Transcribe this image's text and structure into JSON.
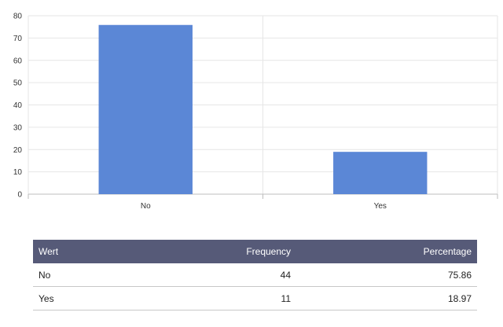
{
  "chart_data": {
    "type": "bar",
    "categories": [
      "No",
      "Yes"
    ],
    "values": [
      75.86,
      18.97
    ],
    "ylim": [
      0,
      80
    ],
    "yticks": [
      0,
      10,
      20,
      30,
      40,
      50,
      60,
      70,
      80
    ],
    "grid": true,
    "title": "",
    "xlabel": "",
    "ylabel": "",
    "bar_color": "#5b87d6"
  },
  "table": {
    "headers": [
      "Wert",
      "Frequency",
      "Percentage"
    ],
    "rows": [
      [
        "No",
        "44",
        "75.86"
      ],
      [
        "Yes",
        "11",
        "18.97"
      ]
    ]
  },
  "colors": {
    "header_bg": "#565a78",
    "bar": "#5b87d6"
  }
}
